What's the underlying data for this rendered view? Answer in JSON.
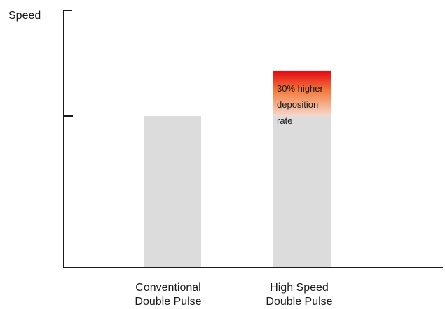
{
  "chart_data": {
    "type": "bar",
    "ylabel": "Speed",
    "categories": [
      "Conventional Double Pulse",
      "High Speed Double Pulse"
    ],
    "category_lines": [
      [
        "Conventional",
        "Double Pulse"
      ],
      [
        "High Speed",
        "Double Pulse"
      ]
    ],
    "values": [
      100,
      130
    ],
    "ylim": [
      0,
      150
    ],
    "yticks": [
      100
    ],
    "grid": false,
    "legend": "none",
    "bar_color": "#dcdcdc",
    "highlight": {
      "category_index": 1,
      "from_value": 100,
      "to_value": 130,
      "colors": [
        "#e30613",
        "#f47c3c",
        "#f5d9cd"
      ],
      "annotation_lines": [
        "30% higher",
        "deposition",
        "rate"
      ]
    }
  }
}
